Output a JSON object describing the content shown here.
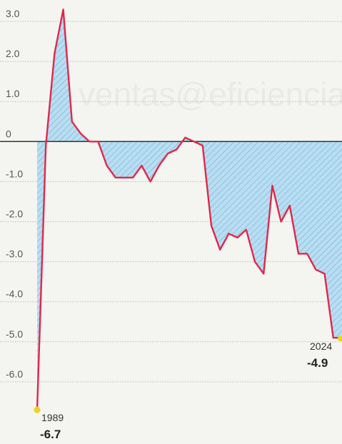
{
  "watermark": "ventas@eficienciain",
  "chart_data": {
    "type": "area",
    "title": "",
    "xlabel": "",
    "ylabel": "",
    "ylim": [
      -6.8,
      3.4
    ],
    "yticks": [
      {
        "value": 3,
        "label": "3.0"
      },
      {
        "value": 2,
        "label": "2.0"
      },
      {
        "value": 1,
        "label": "1.0"
      },
      {
        "value": 0,
        "label": "0"
      },
      {
        "value": -1,
        "label": "-1.0"
      },
      {
        "value": -2,
        "label": "-2.0"
      },
      {
        "value": -3,
        "label": "-3.0"
      },
      {
        "value": -4,
        "label": "-4.0"
      },
      {
        "value": -5,
        "label": "-5.0"
      },
      {
        "value": -6,
        "label": "-6.0"
      }
    ],
    "grid": true,
    "colors": {
      "line": "#e0284a",
      "fill": "#b9ddf1",
      "hatch": "#6fb0d8",
      "marker": "#f3d21a"
    },
    "x": [
      1989,
      1990,
      1991,
      1992,
      1993,
      1994,
      1995,
      1996,
      1997,
      1998,
      1999,
      2000,
      2001,
      2002,
      2003,
      2004,
      2005,
      2006,
      2007,
      2008,
      2009,
      2010,
      2011,
      2012,
      2013,
      2014,
      2015,
      2016,
      2017,
      2018,
      2019,
      2020,
      2021,
      2022,
      2023,
      2024
    ],
    "values": [
      -6.7,
      -0.1,
      2.2,
      3.3,
      0.5,
      0.2,
      0.0,
      0.0,
      -0.6,
      -0.9,
      -0.9,
      -0.9,
      -0.6,
      -1.0,
      -0.6,
      -0.3,
      -0.2,
      0.1,
      0.0,
      -0.1,
      -2.1,
      -2.7,
      -2.3,
      -2.4,
      -2.2,
      -3.0,
      -3.3,
      -1.1,
      -2.0,
      -1.6,
      -2.8,
      -2.8,
      -3.2,
      -3.3,
      -4.9,
      -4.9
    ],
    "annotations": [
      {
        "year": "1989",
        "value": "-6.7"
      },
      {
        "year": "2024",
        "value": "-4.9"
      }
    ]
  }
}
